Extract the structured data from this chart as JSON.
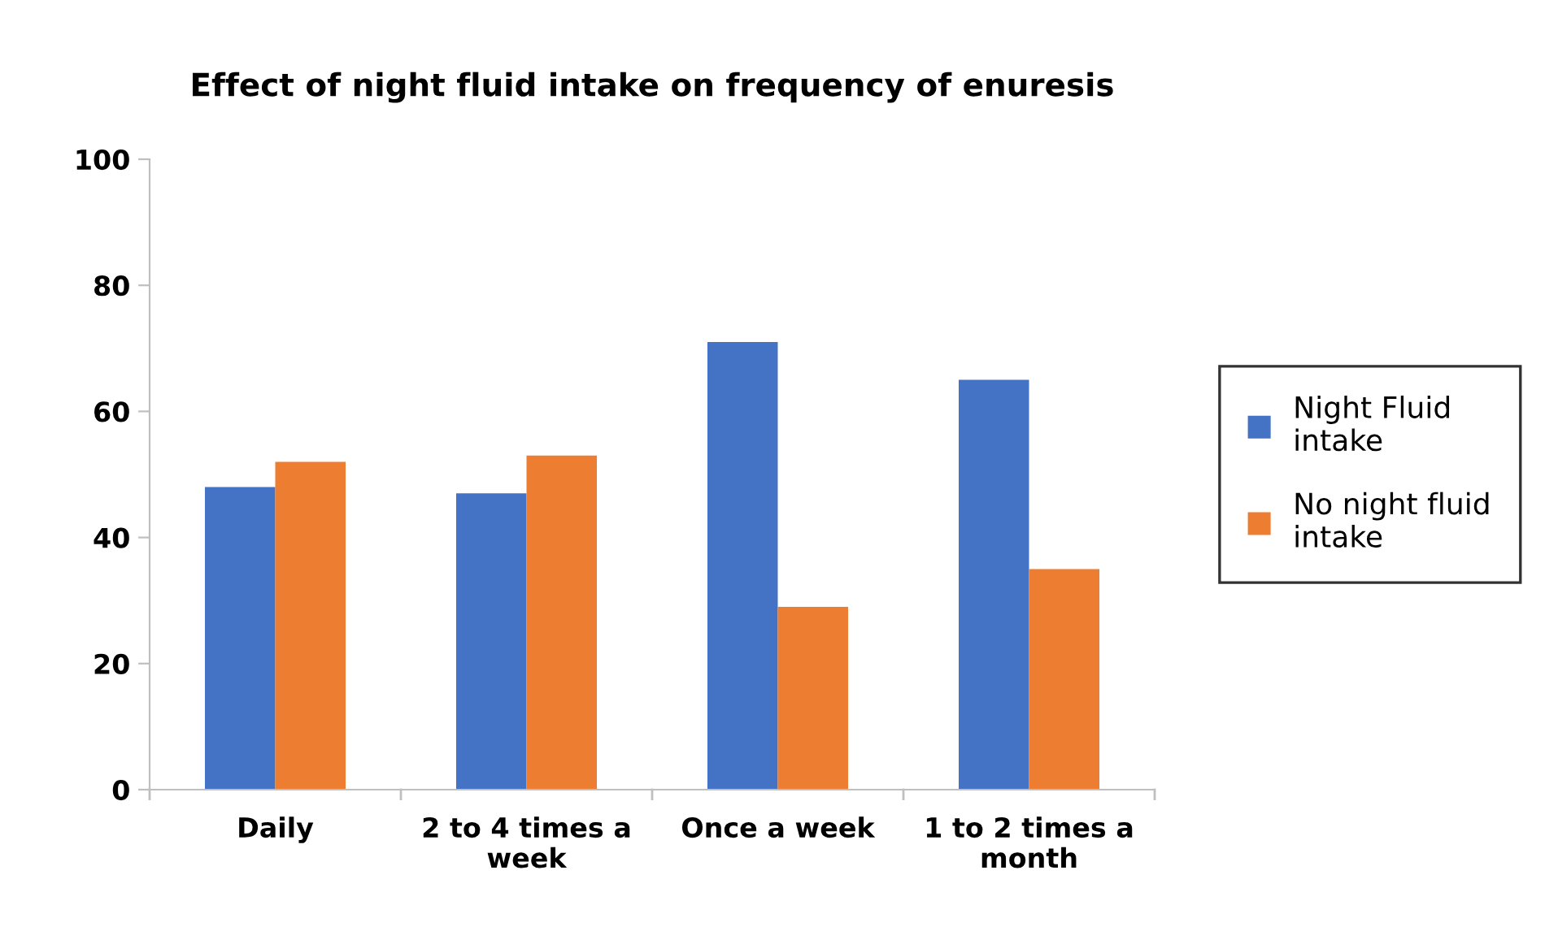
{
  "chart_data": {
    "type": "bar",
    "title": "Effect of night fluid intake on frequency of enuresis",
    "categories": [
      "Daily",
      "2 to 4 times a week",
      "Once a week",
      "1 to 2 times a month"
    ],
    "series": [
      {
        "name": "Night Fluid intake",
        "color": "#4472c4",
        "values": [
          48,
          47,
          71,
          65
        ]
      },
      {
        "name": "No night fluid intake",
        "color": "#ed7d31",
        "values": [
          52,
          53,
          29,
          35
        ]
      }
    ],
    "ylim": [
      0,
      100
    ],
    "yticks": [
      0,
      20,
      40,
      60,
      80,
      100
    ],
    "grid": false,
    "legend": "right"
  }
}
